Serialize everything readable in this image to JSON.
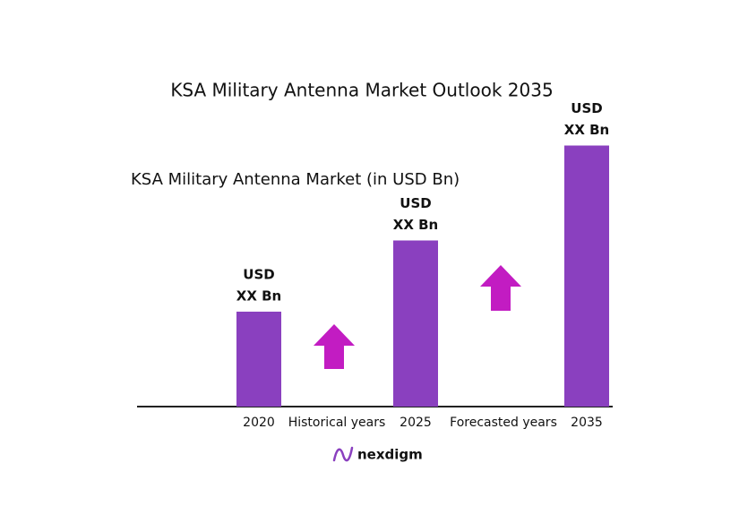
{
  "chart_data": {
    "type": "bar",
    "title": "KSA Military Antenna Market Outlook 2035",
    "subtitle": "KSA Military Antenna Market (in USD Bn)",
    "categories": [
      "2020",
      "2025",
      "2035"
    ],
    "values": [
      1.0,
      1.75,
      2.75
    ],
    "value_labels": [
      [
        "USD",
        "XX Bn"
      ],
      [
        "USD",
        "XX Bn"
      ],
      [
        "USD",
        "XX Bn"
      ]
    ],
    "color": "#8a40bf",
    "ylim": [
      0,
      3
    ],
    "annotations": [
      "Historical years",
      "Forecasted years"
    ],
    "logo": "nexdigm"
  }
}
